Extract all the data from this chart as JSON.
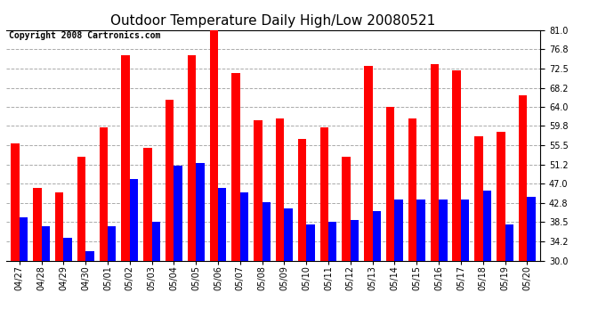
{
  "title": "Outdoor Temperature Daily High/Low 20080521",
  "copyright": "Copyright 2008 Cartronics.com",
  "categories": [
    "04/27",
    "04/28",
    "04/29",
    "04/30",
    "05/01",
    "05/02",
    "05/03",
    "05/04",
    "05/05",
    "05/06",
    "05/07",
    "05/08",
    "05/09",
    "05/10",
    "05/11",
    "05/12",
    "05/13",
    "05/14",
    "05/15",
    "05/16",
    "05/17",
    "05/18",
    "05/19",
    "05/20"
  ],
  "highs": [
    56.0,
    46.0,
    45.0,
    53.0,
    59.5,
    75.5,
    55.0,
    65.5,
    75.5,
    81.0,
    71.5,
    61.0,
    61.5,
    57.0,
    59.5,
    53.0,
    73.0,
    64.0,
    61.5,
    73.5,
    72.0,
    57.5,
    58.5,
    66.5
  ],
  "lows": [
    39.5,
    37.5,
    35.0,
    32.0,
    37.5,
    48.0,
    38.5,
    51.0,
    51.5,
    46.0,
    45.0,
    43.0,
    41.5,
    38.0,
    38.5,
    39.0,
    41.0,
    43.5,
    43.5,
    43.5,
    43.5,
    45.5,
    38.0,
    44.0
  ],
  "high_color": "#ff0000",
  "low_color": "#0000ff",
  "ymin": 30.0,
  "ymax": 81.0,
  "yticks": [
    30.0,
    34.2,
    38.5,
    42.8,
    47.0,
    51.2,
    55.5,
    59.8,
    64.0,
    68.2,
    72.5,
    76.8,
    81.0
  ],
  "background_color": "#ffffff",
  "grid_color": "#aaaaaa",
  "title_fontsize": 11,
  "copyright_fontsize": 7,
  "tick_fontsize": 7,
  "bar_width": 0.38
}
